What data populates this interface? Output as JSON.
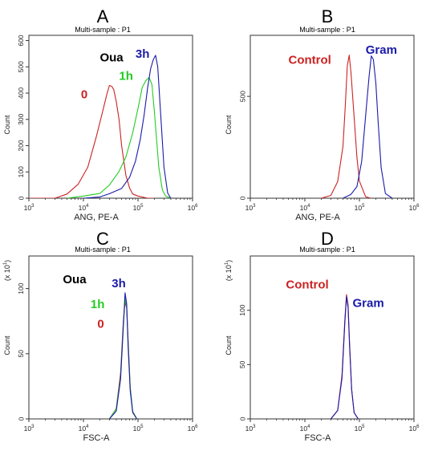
{
  "colors": {
    "red": "#cc2222",
    "green": "#22cc22",
    "blue": "#1a1aaa",
    "black": "#000000",
    "axis": "#333333"
  },
  "chart_data": [
    {
      "type": "line",
      "panel": "A",
      "subtitle": "Multi-sample : P1",
      "xlabel": "ANG, PE-A",
      "ylabel": "Count",
      "xscale": "log",
      "xlim": [
        1000,
        1000000
      ],
      "ylim": [
        0,
        620
      ],
      "xticks": [
        {
          "value": 1000,
          "base": "10",
          "exp": "3"
        },
        {
          "value": 10000,
          "base": "10",
          "exp": "4"
        },
        {
          "value": 100000,
          "base": "10",
          "exp": "5"
        },
        {
          "value": 1000000,
          "base": "10",
          "exp": "6"
        }
      ],
      "yticks": [
        {
          "value": 0,
          "label": "0"
        },
        {
          "value": 100,
          "label": "100"
        },
        {
          "value": 200,
          "label": "200"
        },
        {
          "value": 300,
          "label": "300"
        },
        {
          "value": 400,
          "label": "400"
        },
        {
          "value": 500,
          "label": "500"
        },
        {
          "value": 600,
          "label": "600"
        }
      ],
      "series": [
        {
          "color": "red",
          "x": [
            1000,
            3000,
            5000,
            8000,
            12000,
            17000,
            22000,
            27000,
            30000,
            33000,
            36000,
            40000,
            45000,
            50000,
            60000,
            70000,
            80000,
            100000,
            150000,
            200000
          ],
          "y": [
            0,
            0,
            15,
            50,
            120,
            230,
            320,
            400,
            430,
            425,
            410,
            370,
            300,
            200,
            90,
            40,
            15,
            5,
            0,
            0
          ]
        },
        {
          "color": "green",
          "x": [
            5000,
            10000,
            20000,
            30000,
            45000,
            60000,
            80000,
            100000,
            120000,
            140000,
            160000,
            180000,
            200000,
            240000,
            280000,
            320000,
            400000
          ],
          "y": [
            0,
            5,
            20,
            50,
            100,
            160,
            250,
            340,
            420,
            450,
            460,
            430,
            330,
            120,
            30,
            5,
            0
          ]
        },
        {
          "color": "blue",
          "x": [
            10000,
            20000,
            30000,
            50000,
            70000,
            90000,
            110000,
            130000,
            150000,
            170000,
            190000,
            210000,
            230000,
            260000,
            300000,
            350000,
            400000
          ],
          "y": [
            0,
            5,
            15,
            40,
            80,
            140,
            220,
            320,
            420,
            490,
            530,
            545,
            500,
            320,
            120,
            20,
            0
          ]
        }
      ],
      "annotations": [
        {
          "text": "Oua",
          "color": "black",
          "x": 20000,
          "y": 520
        },
        {
          "text": "3h",
          "color": "blue",
          "x": 90000,
          "y": 535
        },
        {
          "text": "1h",
          "color": "green",
          "x": 45000,
          "y": 450
        },
        {
          "text": "0",
          "color": "red",
          "x": 9000,
          "y": 380
        }
      ]
    },
    {
      "type": "line",
      "panel": "B",
      "subtitle": "Multi-sample : P1",
      "xlabel": "ANG, PE-A",
      "ylabel": "Count",
      "xscale": "log",
      "xlim": [
        1000,
        1000000
      ],
      "ylim": [
        0,
        800
      ],
      "xticks": [
        {
          "value": 1000,
          "base": "10",
          "exp": "3"
        },
        {
          "value": 10000,
          "base": "10",
          "exp": "4"
        },
        {
          "value": 100000,
          "base": "10",
          "exp": "5"
        },
        {
          "value": 1000000,
          "base": "10",
          "exp": "6"
        }
      ],
      "yticks": [
        {
          "value": 0,
          "label": "0"
        },
        {
          "value": 500,
          "label": "500"
        }
      ],
      "series": [
        {
          "color": "red",
          "x": [
            20000,
            30000,
            40000,
            50000,
            55000,
            60000,
            65000,
            70000,
            80000,
            90000,
            100000,
            130000,
            160000
          ],
          "y": [
            0,
            15,
            80,
            250,
            450,
            650,
            700,
            620,
            400,
            200,
            80,
            10,
            0
          ]
        },
        {
          "color": "blue",
          "x": [
            50000,
            70000,
            90000,
            110000,
            130000,
            150000,
            165000,
            180000,
            200000,
            220000,
            250000,
            300000,
            400000
          ],
          "y": [
            0,
            15,
            60,
            180,
            400,
            600,
            700,
            680,
            560,
            380,
            150,
            20,
            0
          ]
        }
      ],
      "annotations": [
        {
          "text": "Control",
          "color": "red",
          "x": 5000,
          "y": 660
        },
        {
          "text": "Gram",
          "color": "blue",
          "x": 130000,
          "y": 710
        }
      ]
    },
    {
      "type": "line",
      "panel": "C",
      "subtitle": "Multi-sample : P1",
      "xlabel": "FSC-A",
      "ylabel": "Count",
      "yunit_base": "(x 10",
      "yunit_exp": "1",
      "yunit_tail": ")",
      "xscale": "log",
      "xlim": [
        1000,
        1000000
      ],
      "ylim": [
        0,
        125
      ],
      "xticks": [
        {
          "value": 1000,
          "base": "10",
          "exp": "3"
        },
        {
          "value": 10000,
          "base": "10",
          "exp": "4"
        },
        {
          "value": 100000,
          "base": "10",
          "exp": "5"
        },
        {
          "value": 1000000,
          "base": "10",
          "exp": "6"
        }
      ],
      "yticks": [
        {
          "value": 0,
          "label": "0"
        },
        {
          "value": 50,
          "label": "50"
        },
        {
          "value": 100,
          "label": "100"
        }
      ],
      "series": [
        {
          "color": "red",
          "x": [
            30000,
            40000,
            48000,
            54000,
            58000,
            62000,
            66000,
            72000,
            80000,
            95000
          ],
          "y": [
            0,
            8,
            35,
            75,
            90,
            85,
            60,
            25,
            6,
            0
          ]
        },
        {
          "color": "green",
          "x": [
            30000,
            40000,
            48000,
            54000,
            58000,
            62000,
            66000,
            72000,
            80000,
            95000
          ],
          "y": [
            0,
            7,
            33,
            74,
            92,
            86,
            58,
            24,
            5,
            0
          ]
        },
        {
          "color": "blue",
          "x": [
            30000,
            40000,
            48000,
            54000,
            58000,
            62000,
            66000,
            72000,
            80000,
            95000
          ],
          "y": [
            0,
            6,
            30,
            72,
            97,
            88,
            55,
            22,
            5,
            0
          ]
        }
      ],
      "annotations": [
        {
          "text": "Oua",
          "color": "black",
          "x": 4200,
          "y": 104
        },
        {
          "text": "3h",
          "color": "blue",
          "x": 33000,
          "y": 101
        },
        {
          "text": "1h",
          "color": "green",
          "x": 13500,
          "y": 85
        },
        {
          "text": "0",
          "color": "red",
          "x": 18000,
          "y": 70
        }
      ]
    },
    {
      "type": "line",
      "panel": "D",
      "subtitle": "Multi-sample : P1",
      "xlabel": "FSC-A",
      "ylabel": "Count",
      "yunit_base": "(x 10",
      "yunit_exp": "1",
      "yunit_tail": ")",
      "xscale": "log",
      "xlim": [
        1000,
        1000000
      ],
      "ylim": [
        0,
        150
      ],
      "xticks": [
        {
          "value": 1000,
          "base": "10",
          "exp": "3"
        },
        {
          "value": 10000,
          "base": "10",
          "exp": "4"
        },
        {
          "value": 100000,
          "base": "10",
          "exp": "5"
        },
        {
          "value": 1000000,
          "base": "10",
          "exp": "6"
        }
      ],
      "yticks": [
        {
          "value": 0,
          "label": "0"
        },
        {
          "value": 50,
          "label": "50"
        },
        {
          "value": 100,
          "label": "100"
        }
      ],
      "series": [
        {
          "color": "red",
          "x": [
            30000,
            40000,
            48000,
            54000,
            58000,
            62000,
            66000,
            72000,
            80000,
            95000
          ],
          "y": [
            0,
            8,
            40,
            90,
            115,
            105,
            70,
            28,
            6,
            0
          ]
        },
        {
          "color": "blue",
          "x": [
            30000,
            40000,
            48000,
            54000,
            58000,
            62000,
            66000,
            72000,
            80000,
            95000
          ],
          "y": [
            0,
            7,
            38,
            88,
            112,
            103,
            68,
            27,
            5,
            0
          ]
        }
      ],
      "annotations": [
        {
          "text": "Control",
          "color": "red",
          "x": 4500,
          "y": 120
        },
        {
          "text": "Gram",
          "color": "blue",
          "x": 75000,
          "y": 103
        }
      ]
    }
  ]
}
